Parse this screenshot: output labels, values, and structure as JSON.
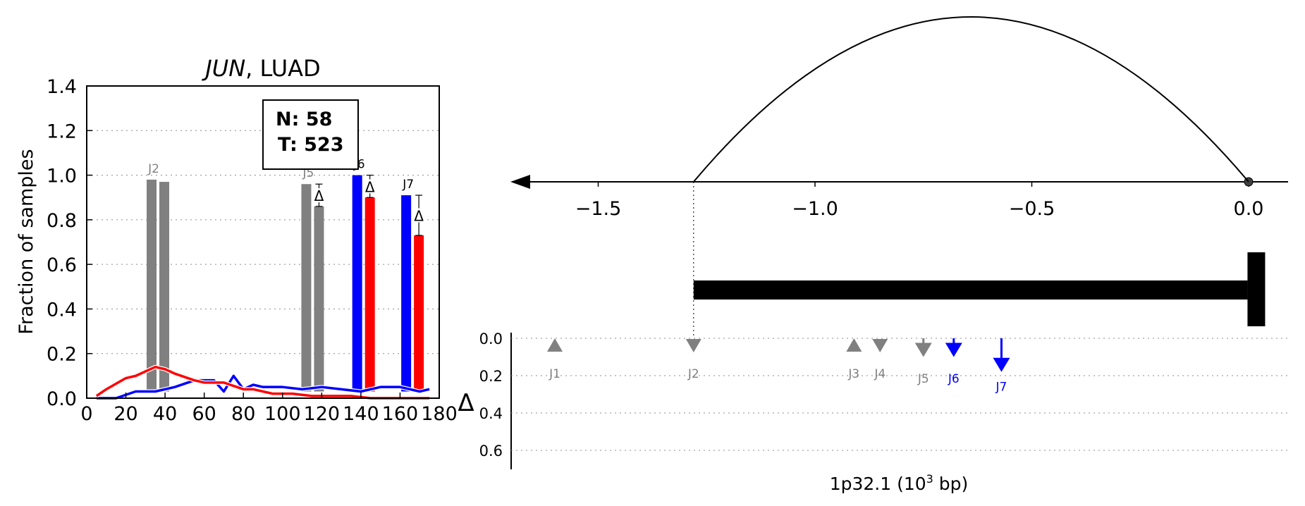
{
  "left_chart": {
    "title_gene": "JUN",
    "title_rest": ", LUAD",
    "ylabel": "Fraction of samples",
    "legend_n": "N: 58",
    "legend_t": "T: 523"
  },
  "right_chart": {
    "xlabel_pre": "1p32.1 (10",
    "xlabel_sup": "3",
    "xlabel_post": " bp)",
    "delta_label": "Δ"
  },
  "chart_data": [
    {
      "type": "bar",
      "title": "JUN, LUAD",
      "ylabel": "Fraction of samples",
      "xlim": [
        0,
        180
      ],
      "ylim": [
        0,
        1.4
      ],
      "xticks": [
        0,
        20,
        40,
        60,
        80,
        100,
        120,
        140,
        160,
        180
      ],
      "yticks": [
        0.0,
        0.2,
        0.4,
        0.6,
        0.8,
        1.0,
        1.2,
        1.4
      ],
      "grid": "horizontal dotted",
      "legend": {
        "N": 58,
        "T": 523,
        "placement": "top-center"
      },
      "junction_bars": [
        {
          "label": "J2",
          "x": 36,
          "normal": 0.98,
          "tumor": 0.97,
          "color": "#808080",
          "delta_marker": false
        },
        {
          "label": "J5",
          "x": 115,
          "normal": 0.96,
          "tumor": 0.86,
          "color": "#808080",
          "delta_marker": true
        },
        {
          "label": "J6",
          "x": 141,
          "normal": 1.0,
          "tumor": 0.9,
          "color_normal": "#0000ff",
          "color_tumor": "#ff0000",
          "delta_marker": true
        },
        {
          "label": "J7",
          "x": 166,
          "normal": 0.91,
          "tumor": 0.73,
          "color_normal": "#0000ff",
          "color_tumor": "#ff0000",
          "delta_marker": true
        }
      ],
      "faint_labels": [
        "J1",
        "J3",
        "J4"
      ],
      "series": [
        {
          "name": "N",
          "color": "#0000ff",
          "x": [
            5,
            15,
            25,
            35,
            45,
            55,
            65,
            70,
            75,
            80,
            85,
            90,
            100,
            110,
            120,
            130,
            140,
            150,
            160,
            170,
            175
          ],
          "y": [
            0.0,
            0.0,
            0.03,
            0.03,
            0.05,
            0.08,
            0.08,
            0.03,
            0.1,
            0.04,
            0.06,
            0.05,
            0.05,
            0.04,
            0.05,
            0.04,
            0.03,
            0.05,
            0.05,
            0.03,
            0.04
          ]
        },
        {
          "name": "T",
          "color": "#ff0000",
          "x": [
            5,
            10,
            20,
            25,
            35,
            40,
            45,
            55,
            60,
            70,
            80,
            85,
            95,
            105,
            115,
            125,
            135,
            145,
            155,
            165,
            175
          ],
          "y": [
            0.01,
            0.04,
            0.09,
            0.1,
            0.14,
            0.13,
            0.11,
            0.08,
            0.07,
            0.07,
            0.04,
            0.04,
            0.02,
            0.02,
            0.01,
            0.01,
            0.01,
            0.0,
            0.0,
            0.0,
            0.0
          ]
        }
      ]
    },
    {
      "type": "diagram",
      "xlabel": "1p32.1 (10^3 bp)",
      "ylabel": "Δ",
      "xlim": [
        -1.65,
        0.05
      ],
      "xticks": [
        -1.5,
        -1.0,
        -0.5,
        0.0
      ],
      "delta_yticks": [
        0.0,
        0.2,
        0.4,
        0.6
      ],
      "arc": {
        "start": -1.28,
        "end": 0.0
      },
      "gene_bar": {
        "start": -1.28,
        "end": 0.03
      },
      "junctions": [
        {
          "label": "J1",
          "x": -1.6,
          "delta": 0.0,
          "marker": "triangle-up",
          "color": "#808080"
        },
        {
          "label": "J2",
          "x": -1.28,
          "delta": 0.0,
          "marker": "triangle-down",
          "color": "#808080"
        },
        {
          "label": "J3",
          "x": -0.91,
          "delta": 0.0,
          "marker": "triangle-up",
          "color": "#808080"
        },
        {
          "label": "J4",
          "x": -0.85,
          "delta": 0.0,
          "marker": "triangle-down",
          "color": "#808080"
        },
        {
          "label": "J5",
          "x": -0.75,
          "delta": 0.1,
          "marker": "arrow-down",
          "color": "#808080"
        },
        {
          "label": "J6",
          "x": -0.68,
          "delta": 0.1,
          "marker": "arrow-down",
          "color": "#0000ff"
        },
        {
          "label": "J7",
          "x": -0.57,
          "delta": 0.18,
          "marker": "arrow-down",
          "color": "#0000ff"
        }
      ]
    }
  ]
}
